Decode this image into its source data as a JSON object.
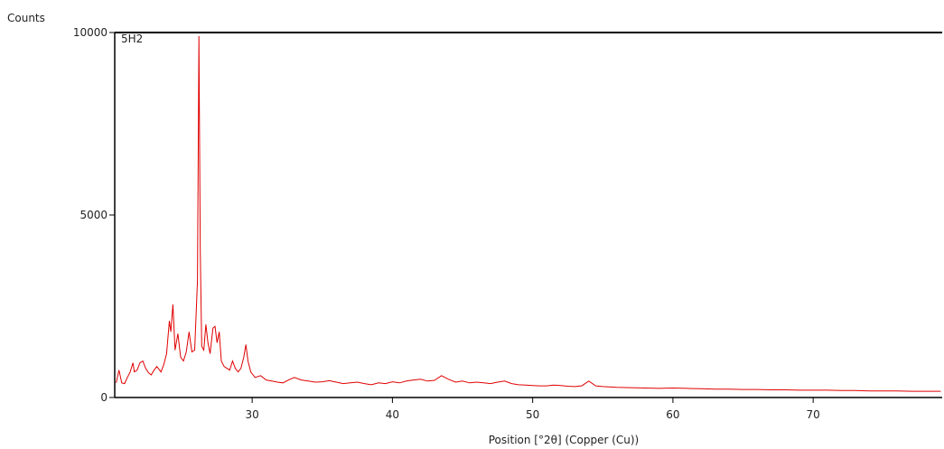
{
  "chart_data": {
    "type": "line",
    "title": "",
    "sample_label": "5H2",
    "xlabel": "Position [°2θ] (Copper (Cu))",
    "ylabel": "Counts",
    "xlim": [
      20.2,
      79.2
    ],
    "ylim": [
      0,
      10000
    ],
    "xticks": [
      30,
      40,
      50,
      60,
      70
    ],
    "yticks": [
      0,
      5000,
      10000
    ],
    "grid": false,
    "colors": {
      "line": "#e00000",
      "axis": "#000000"
    },
    "series": [
      {
        "x": [
          20.3,
          20.5,
          20.7,
          20.9,
          21.1,
          21.3,
          21.5,
          21.6,
          21.8,
          22.0,
          22.2,
          22.4,
          22.6,
          22.8,
          23.0,
          23.2,
          23.3,
          23.5,
          23.7,
          23.9,
          24.1,
          24.2,
          24.35,
          24.5,
          24.7,
          24.9,
          25.1,
          25.3,
          25.5,
          25.7,
          25.9,
          26.1,
          26.2,
          26.3,
          26.4,
          26.55,
          26.7,
          26.85,
          27.0,
          27.2,
          27.35,
          27.5,
          27.65,
          27.8,
          28.0,
          28.2,
          28.4,
          28.6,
          28.8,
          29.0,
          29.2,
          29.4,
          29.55,
          29.7,
          29.9,
          30.2,
          30.6,
          31.0,
          31.4,
          31.8,
          32.2,
          32.6,
          33.0,
          33.5,
          34.0,
          34.5,
          35.0,
          35.5,
          36.0,
          36.5,
          37.0,
          37.5,
          38.0,
          38.5,
          39.0,
          39.5,
          40.0,
          40.5,
          41.0,
          41.5,
          42.0,
          42.5,
          43.0,
          43.5,
          44.0,
          44.5,
          45.0,
          45.5,
          46.0,
          46.5,
          47.0,
          47.5,
          48.0,
          48.5,
          49.0,
          49.5,
          50.0,
          50.5,
          51.0,
          51.5,
          52.0,
          52.5,
          53.0,
          53.5,
          54.0,
          54.5,
          55.0,
          56.0,
          57.0,
          58.0,
          59.0,
          60.0,
          61.0,
          62.0,
          63.0,
          64.0,
          65.0,
          66.0,
          67.0,
          68.0,
          69.0,
          70.0,
          71.0,
          72.0,
          73.0,
          74.0,
          75.0,
          76.0,
          77.0,
          78.0,
          79.1
        ],
        "y": [
          400,
          750,
          400,
          380,
          550,
          700,
          950,
          700,
          750,
          950,
          1000,
          800,
          680,
          620,
          750,
          850,
          800,
          700,
          900,
          1200,
          2100,
          1800,
          2550,
          1300,
          1750,
          1100,
          1000,
          1250,
          1800,
          1250,
          1300,
          3200,
          9900,
          4000,
          1400,
          1300,
          2000,
          1500,
          1200,
          1900,
          1950,
          1500,
          1800,
          1000,
          850,
          800,
          750,
          1000,
          800,
          700,
          800,
          1100,
          1450,
          1000,
          700,
          550,
          600,
          480,
          450,
          420,
          400,
          480,
          550,
          480,
          450,
          420,
          430,
          460,
          420,
          380,
          400,
          420,
          380,
          350,
          400,
          380,
          430,
          400,
          450,
          480,
          500,
          450,
          470,
          600,
          500,
          420,
          450,
          400,
          420,
          400,
          380,
          420,
          450,
          380,
          350,
          340,
          330,
          320,
          320,
          340,
          330,
          310,
          300,
          320,
          450,
          320,
          300,
          280,
          270,
          260,
          250,
          260,
          250,
          240,
          230,
          230,
          220,
          220,
          210,
          210,
          200,
          200,
          200,
          190,
          190,
          180,
          180,
          180,
          170,
          170,
          170
        ]
      }
    ]
  }
}
